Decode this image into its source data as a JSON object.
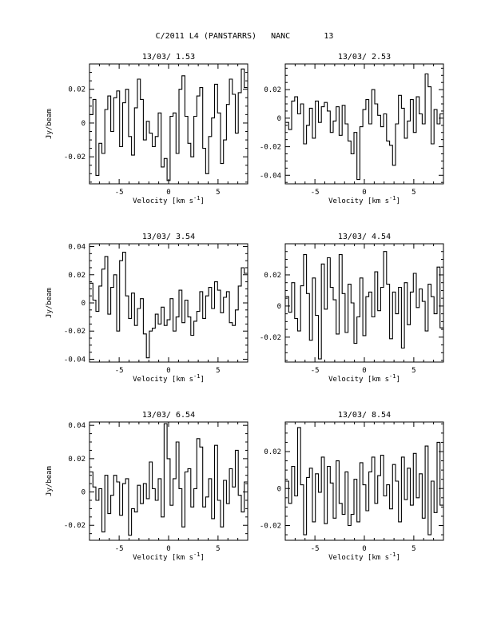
{
  "page_title": "C/2011 L4 (PANSTARRS)   NANC       13",
  "chart_data": [
    {
      "type": "line",
      "title": "13/03/ 1.53",
      "xlabel": "Velocity [km s",
      "xlabel_sup": "-1",
      "xlabel_end": "]",
      "ylabel": "Jy/beam",
      "xlim": [
        -8,
        8
      ],
      "ylim": [
        -0.036,
        0.035
      ],
      "xticks": [
        -5,
        0,
        5
      ],
      "xticklabels": [
        "-5",
        "0",
        "5"
      ],
      "yticks": [
        -0.02,
        0,
        0.02
      ],
      "yticklabels": [
        "-0.02",
        "0",
        "0.02"
      ],
      "grid": false,
      "series": [
        {
          "x": [
            -7.8,
            -7.5,
            -7.2,
            -6.9,
            -6.6,
            -6.3,
            -6.0,
            -5.7,
            -5.4,
            -5.1,
            -4.8,
            -4.5,
            -4.2,
            -3.9,
            -3.6,
            -3.3,
            -3.0,
            -2.7,
            -2.4,
            -2.1,
            -1.8,
            -1.5,
            -1.2,
            -0.9,
            -0.6,
            -0.3,
            0.0,
            0.3,
            0.6,
            0.9,
            1.2,
            1.5,
            1.8,
            2.1,
            2.4,
            2.7,
            3.0,
            3.3,
            3.6,
            3.9,
            4.2,
            4.5,
            4.8,
            5.1,
            5.4,
            5.7,
            6.0,
            6.3,
            6.6,
            6.9,
            7.2,
            7.5,
            7.8
          ],
          "values": [
            0.005,
            0.014,
            -0.031,
            -0.012,
            -0.018,
            0.008,
            0.016,
            -0.005,
            0.015,
            0.019,
            -0.014,
            0.012,
            0.02,
            -0.008,
            -0.019,
            0.009,
            0.026,
            0.014,
            -0.01,
            0.001,
            -0.006,
            -0.014,
            -0.008,
            0.006,
            -0.026,
            -0.021,
            -0.034,
            0.004,
            0.006,
            -0.018,
            0.02,
            0.028,
            0.004,
            -0.012,
            -0.02,
            0.004,
            0.016,
            0.021,
            -0.015,
            -0.03,
            -0.008,
            0.003,
            0.023,
            0.006,
            -0.024,
            -0.01,
            0.011,
            0.026,
            0.017,
            -0.006,
            0.018,
            0.032,
            0.021
          ]
        }
      ]
    },
    {
      "type": "line",
      "title": "13/03/ 2.53",
      "xlabel": "Velocity [km s",
      "xlabel_sup": "-1",
      "xlabel_end": "]",
      "ylabel": "",
      "xlim": [
        -8,
        8
      ],
      "ylim": [
        -0.046,
        0.038
      ],
      "xticks": [
        -5,
        0,
        5
      ],
      "xticklabels": [
        "-5",
        "0",
        "5"
      ],
      "yticks": [
        -0.04,
        -0.02,
        0,
        0.02
      ],
      "yticklabels": [
        "-0.04",
        "-0.02",
        "0",
        "0.02"
      ],
      "grid": false,
      "series": [
        {
          "x": [
            -7.8,
            -7.5,
            -7.2,
            -6.9,
            -6.6,
            -6.3,
            -6.0,
            -5.7,
            -5.4,
            -5.1,
            -4.8,
            -4.5,
            -4.2,
            -3.9,
            -3.6,
            -3.3,
            -3.0,
            -2.7,
            -2.4,
            -2.1,
            -1.8,
            -1.5,
            -1.2,
            -0.9,
            -0.6,
            -0.3,
            0.0,
            0.3,
            0.6,
            0.9,
            1.2,
            1.5,
            1.8,
            2.1,
            2.4,
            2.7,
            3.0,
            3.3,
            3.6,
            3.9,
            4.2,
            4.5,
            4.8,
            5.1,
            5.4,
            5.7,
            6.0,
            6.3,
            6.6,
            6.9,
            7.2,
            7.5,
            7.8
          ],
          "values": [
            -0.003,
            -0.008,
            0.012,
            0.015,
            0.003,
            0.01,
            -0.018,
            -0.005,
            0.007,
            -0.014,
            0.012,
            -0.003,
            0.008,
            0.011,
            0.005,
            -0.01,
            -0.002,
            0.008,
            -0.012,
            0.009,
            -0.004,
            -0.016,
            -0.025,
            -0.01,
            -0.043,
            -0.006,
            0.006,
            0.013,
            -0.004,
            0.02,
            0.01,
            0.002,
            -0.006,
            0.003,
            -0.016,
            -0.019,
            -0.033,
            -0.004,
            0.016,
            0.007,
            -0.014,
            -0.002,
            0.013,
            -0.01,
            0.015,
            0.003,
            -0.004,
            0.031,
            0.022,
            -0.018,
            0.006,
            -0.004,
            0.003
          ]
        }
      ]
    },
    {
      "type": "line",
      "title": "13/03/ 3.54",
      "xlabel": "Velocity [km s",
      "xlabel_sup": "-1",
      "xlabel_end": "]",
      "ylabel": "Jy/beam",
      "xlim": [
        -8,
        8
      ],
      "ylim": [
        -0.042,
        0.042
      ],
      "xticks": [
        -5,
        0,
        5
      ],
      "xticklabels": [
        "-5",
        "0",
        "5"
      ],
      "yticks": [
        -0.04,
        -0.02,
        0,
        0.02,
        0.04
      ],
      "yticklabels": [
        "-0.04",
        "-0.02",
        "0",
        "0.02",
        "0.04"
      ],
      "grid": false,
      "series": [
        {
          "x": [
            -7.8,
            -7.5,
            -7.2,
            -6.9,
            -6.6,
            -6.3,
            -6.0,
            -5.7,
            -5.4,
            -5.1,
            -4.8,
            -4.5,
            -4.2,
            -3.9,
            -3.6,
            -3.3,
            -3.0,
            -2.7,
            -2.4,
            -2.1,
            -1.8,
            -1.5,
            -1.2,
            -0.9,
            -0.6,
            -0.3,
            0.0,
            0.3,
            0.6,
            0.9,
            1.2,
            1.5,
            1.8,
            2.1,
            2.4,
            2.7,
            3.0,
            3.3,
            3.6,
            3.9,
            4.2,
            4.5,
            4.8,
            5.1,
            5.4,
            5.7,
            6.0,
            6.3,
            6.6,
            6.9,
            7.2,
            7.5,
            7.8
          ],
          "values": [
            0.014,
            0.002,
            -0.006,
            0.012,
            0.024,
            0.033,
            -0.008,
            0.011,
            0.02,
            -0.02,
            0.03,
            0.036,
            0.005,
            -0.011,
            0.007,
            -0.016,
            -0.004,
            0.003,
            -0.022,
            -0.039,
            -0.02,
            -0.018,
            -0.008,
            -0.015,
            -0.003,
            -0.016,
            -0.012,
            0.003,
            -0.02,
            -0.01,
            0.009,
            -0.014,
            0.002,
            -0.01,
            -0.023,
            -0.013,
            -0.006,
            0.008,
            -0.011,
            0.005,
            0.011,
            -0.004,
            0.015,
            0.009,
            -0.007,
            0.004,
            0.008,
            -0.014,
            -0.016,
            -0.005,
            0.012,
            0.025,
            0.021
          ]
        }
      ]
    },
    {
      "type": "line",
      "title": "13/03/ 4.54",
      "xlabel": "Velocity [km s",
      "xlabel_sup": "-1",
      "xlabel_end": "]",
      "ylabel": "",
      "xlim": [
        -8,
        8
      ],
      "ylim": [
        -0.036,
        0.04
      ],
      "xticks": [
        -5,
        0,
        5
      ],
      "xticklabels": [
        "-5",
        "0",
        "5"
      ],
      "yticks": [
        -0.02,
        0,
        0.02
      ],
      "yticklabels": [
        "-0.02",
        "0",
        "0.02"
      ],
      "grid": false,
      "series": [
        {
          "x": [
            -7.8,
            -7.5,
            -7.2,
            -6.9,
            -6.6,
            -6.3,
            -6.0,
            -5.7,
            -5.4,
            -5.1,
            -4.8,
            -4.5,
            -4.2,
            -3.9,
            -3.6,
            -3.3,
            -3.0,
            -2.7,
            -2.4,
            -2.1,
            -1.8,
            -1.5,
            -1.2,
            -0.9,
            -0.6,
            -0.3,
            0.0,
            0.3,
            0.6,
            0.9,
            1.2,
            1.5,
            1.8,
            2.1,
            2.4,
            2.7,
            3.0,
            3.3,
            3.6,
            3.9,
            4.2,
            4.5,
            4.8,
            5.1,
            5.4,
            5.7,
            6.0,
            6.3,
            6.6,
            6.9,
            7.2,
            7.5,
            7.8
          ],
          "values": [
            0.006,
            -0.004,
            0.015,
            -0.008,
            -0.016,
            0.013,
            0.033,
            0.008,
            -0.022,
            0.018,
            -0.006,
            -0.034,
            0.027,
            -0.002,
            0.031,
            0.012,
            0.004,
            -0.018,
            0.033,
            0.008,
            -0.017,
            0.014,
            0.002,
            -0.024,
            -0.007,
            0.018,
            -0.019,
            0.006,
            0.009,
            -0.007,
            0.022,
            -0.003,
            0.012,
            0.035,
            0.014,
            -0.021,
            0.009,
            -0.005,
            0.012,
            -0.027,
            0.015,
            -0.012,
            0.009,
            0.021,
            -0.001,
            0.011,
            0.003,
            -0.016,
            0.014,
            0.006,
            -0.005,
            0.025,
            -0.014
          ]
        }
      ]
    },
    {
      "type": "line",
      "title": "13/03/ 6.54",
      "xlabel": "Velocity [km s",
      "xlabel_sup": "-1",
      "xlabel_end": "]",
      "ylabel": "Jy/beam",
      "xlim": [
        -8,
        8
      ],
      "ylim": [
        -0.029,
        0.042
      ],
      "xticks": [
        -5,
        0,
        5
      ],
      "xticklabels": [
        "-5",
        "0",
        "5"
      ],
      "yticks": [
        -0.02,
        0,
        0.02,
        0.04
      ],
      "yticklabels": [
        "-0.02",
        "0",
        "0.02",
        "0.04"
      ],
      "grid": false,
      "series": [
        {
          "x": [
            -7.8,
            -7.5,
            -7.2,
            -6.9,
            -6.6,
            -6.3,
            -6.0,
            -5.7,
            -5.4,
            -5.1,
            -4.8,
            -4.5,
            -4.2,
            -3.9,
            -3.6,
            -3.3,
            -3.0,
            -2.7,
            -2.4,
            -2.1,
            -1.8,
            -1.5,
            -1.2,
            -0.9,
            -0.6,
            -0.3,
            0.0,
            0.3,
            0.6,
            0.9,
            1.2,
            1.5,
            1.8,
            2.1,
            2.4,
            2.7,
            3.0,
            3.3,
            3.6,
            3.9,
            4.2,
            4.5,
            4.8,
            5.1,
            5.4,
            5.7,
            6.0,
            6.3,
            6.6,
            6.9,
            7.2,
            7.5,
            7.8
          ],
          "values": [
            0.012,
            0.003,
            -0.005,
            0.002,
            -0.024,
            0.01,
            -0.013,
            -0.002,
            0.01,
            0.006,
            -0.014,
            0.005,
            0.008,
            -0.026,
            -0.01,
            -0.012,
            0.004,
            -0.007,
            0.005,
            -0.004,
            0.018,
            0.002,
            -0.005,
            0.008,
            -0.015,
            0.041,
            0.02,
            -0.008,
            0.008,
            0.03,
            0.002,
            -0.021,
            0.012,
            0.014,
            -0.009,
            0.002,
            0.032,
            0.027,
            -0.009,
            -0.003,
            0.008,
            -0.016,
            0.028,
            -0.005,
            -0.021,
            0.007,
            -0.007,
            0.014,
            0.003,
            0.025,
            -0.002,
            -0.012,
            0.006
          ]
        }
      ]
    },
    {
      "type": "line",
      "title": "13/03/ 8.54",
      "xlabel": "Velocity [km s",
      "xlabel_sup": "-1",
      "xlabel_end": "]",
      "ylabel": "",
      "xlim": [
        -8,
        8
      ],
      "ylim": [
        -0.028,
        0.036
      ],
      "xticks": [
        -5,
        0,
        5
      ],
      "xticklabels": [
        "-5",
        "0",
        "5"
      ],
      "yticks": [
        -0.02,
        0,
        0.02
      ],
      "yticklabels": [
        "-0.02",
        "0",
        "0.02"
      ],
      "grid": false,
      "series": [
        {
          "x": [
            -7.8,
            -7.5,
            -7.2,
            -6.9,
            -6.6,
            -6.3,
            -6.0,
            -5.7,
            -5.4,
            -5.1,
            -4.8,
            -4.5,
            -4.2,
            -3.9,
            -3.6,
            -3.3,
            -3.0,
            -2.7,
            -2.4,
            -2.1,
            -1.8,
            -1.5,
            -1.2,
            -0.9,
            -0.6,
            -0.3,
            0.0,
            0.3,
            0.6,
            0.9,
            1.2,
            1.5,
            1.8,
            2.1,
            2.4,
            2.7,
            3.0,
            3.3,
            3.6,
            3.9,
            4.2,
            4.5,
            4.8,
            5.1,
            5.4,
            5.7,
            6.0,
            6.3,
            6.6,
            6.9,
            7.2,
            7.5,
            7.8
          ],
          "values": [
            0.004,
            -0.008,
            0.012,
            -0.004,
            0.033,
            0.002,
            -0.025,
            0.006,
            0.011,
            -0.018,
            0.008,
            -0.002,
            0.017,
            -0.019,
            0.012,
            0.003,
            -0.016,
            0.015,
            -0.008,
            -0.014,
            0.009,
            -0.02,
            -0.014,
            0.005,
            -0.018,
            0.014,
            0.002,
            -0.012,
            0.009,
            0.017,
            -0.008,
            0.007,
            0.018,
            -0.004,
            0.002,
            -0.011,
            0.013,
            0.004,
            -0.018,
            0.017,
            -0.006,
            0.011,
            -0.009,
            0.019,
            -0.005,
            0.008,
            -0.016,
            0.023,
            -0.025,
            0.004,
            -0.013,
            0.025,
            -0.009
          ]
        }
      ]
    }
  ]
}
